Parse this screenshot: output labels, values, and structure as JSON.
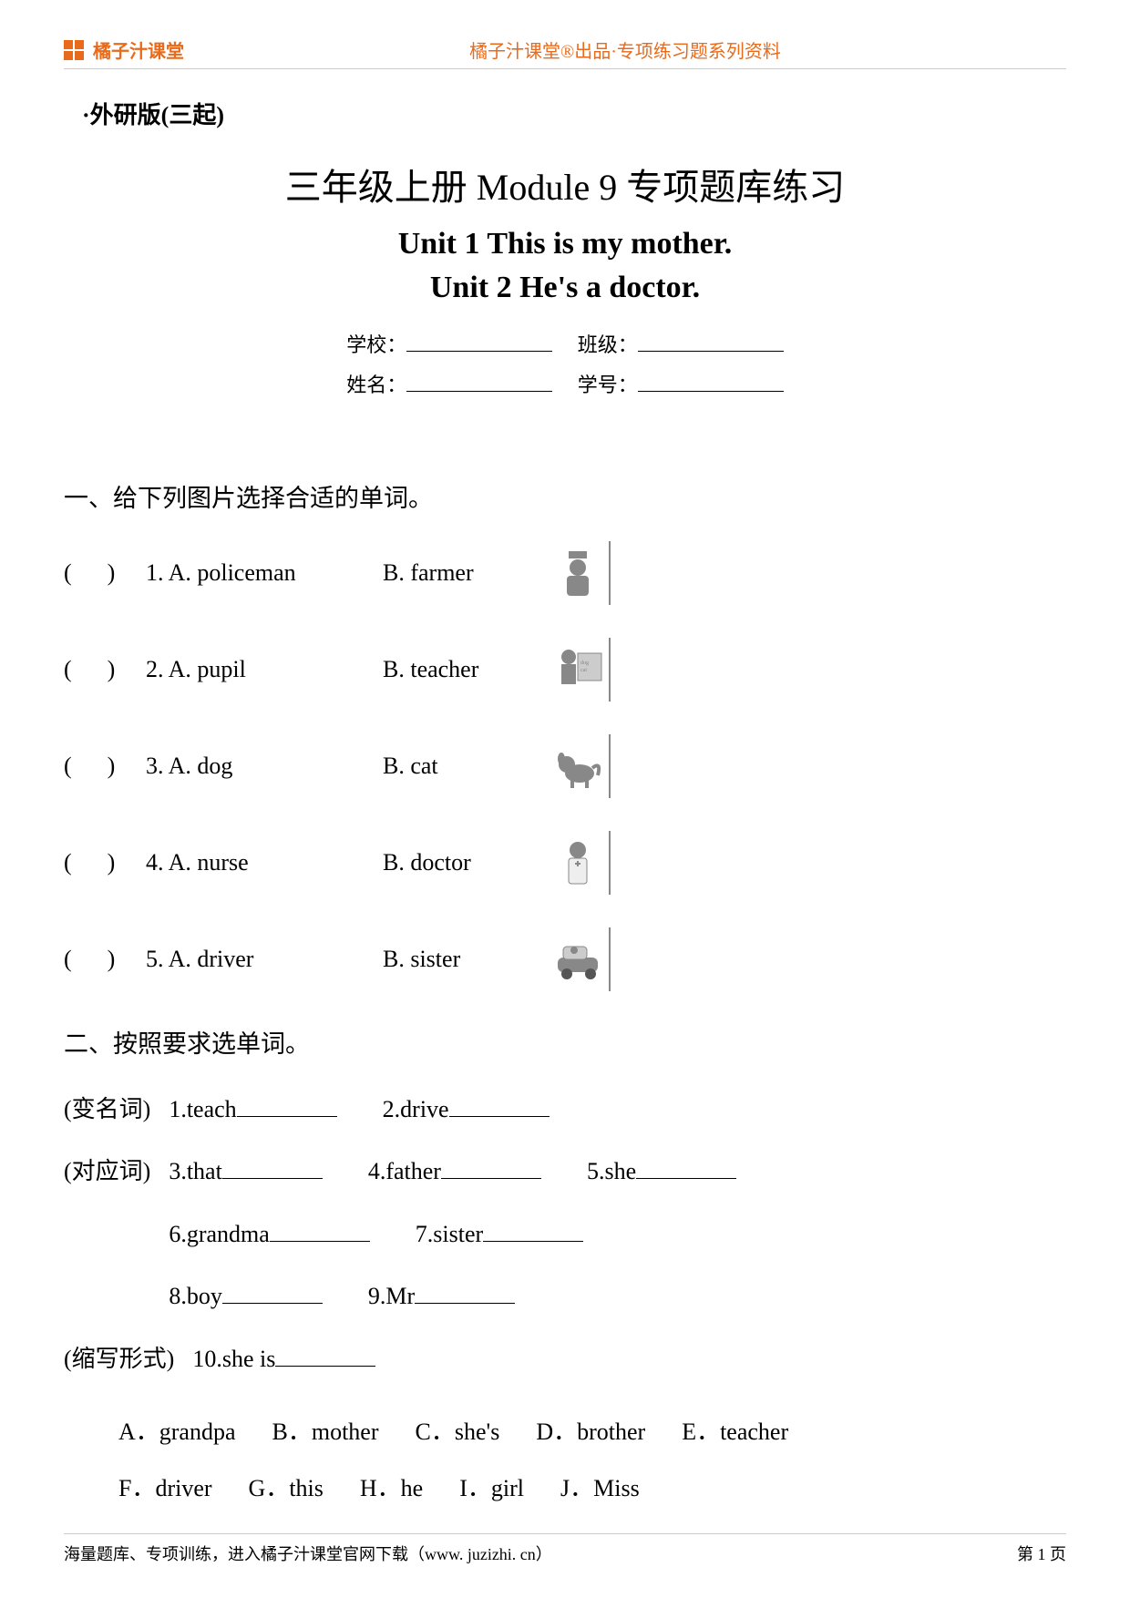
{
  "header": {
    "brand": "橘子汁课堂",
    "center": "橘子汁课堂®出品·专项练习题系列资料",
    "brand_color": "#e86a1a"
  },
  "version": "·外研版(三起)",
  "titles": {
    "main": "三年级上册 Module 9 专项题库练习",
    "unit1": "Unit 1 This is my mother.",
    "unit2": "Unit 2 He's a doctor."
  },
  "info": {
    "school_label": "学校：",
    "class_label": "班级：",
    "name_label": "姓名：",
    "id_label": "学号："
  },
  "section1": {
    "title": "一、给下列图片选择合适的单词。",
    "items": [
      {
        "n": "1",
        "a": "A. policeman",
        "b": "B. farmer",
        "icon": "policeman"
      },
      {
        "n": "2",
        "a": "A. pupil",
        "b": "B. teacher",
        "icon": "teacher"
      },
      {
        "n": "3",
        "a": "A. dog",
        "b": "B. cat",
        "icon": "dog"
      },
      {
        "n": "4",
        "a": "A. nurse",
        "b": "B. doctor",
        "icon": "doctor"
      },
      {
        "n": "5",
        "a": "A. driver",
        "b": "B. sister",
        "icon": "driver"
      }
    ]
  },
  "section2": {
    "title": "二、按照要求选单词。",
    "groups": [
      {
        "label": "(变名词)",
        "items": [
          {
            "n": "1",
            "word": "teach"
          },
          {
            "n": "2",
            "word": "drive"
          }
        ]
      },
      {
        "label": "(对应词)",
        "items": [
          {
            "n": "3",
            "word": "that"
          },
          {
            "n": "4",
            "word": "father"
          },
          {
            "n": "5",
            "word": "she"
          }
        ]
      },
      {
        "label": "",
        "items": [
          {
            "n": "6",
            "word": "grandma"
          },
          {
            "n": "7",
            "word": "sister"
          }
        ]
      },
      {
        "label": "",
        "items": [
          {
            "n": "8",
            "word": "boy"
          },
          {
            "n": "9",
            "word": "Mr"
          }
        ]
      }
    ],
    "last": {
      "label": "(缩写形式)",
      "n": "10",
      "word": "she is"
    },
    "choices_line1": [
      {
        "k": "A",
        "v": "grandpa"
      },
      {
        "k": "B",
        "v": "mother"
      },
      {
        "k": "C",
        "v": "she's"
      },
      {
        "k": "D",
        "v": "brother"
      },
      {
        "k": "E",
        "v": "teacher"
      }
    ],
    "choices_line2": [
      {
        "k": "F",
        "v": "driver"
      },
      {
        "k": "G",
        "v": "this"
      },
      {
        "k": "H",
        "v": "he"
      },
      {
        "k": "I",
        "v": "girl"
      },
      {
        "k": "J",
        "v": "Miss"
      }
    ]
  },
  "footer": {
    "left": "海量题库、专项训练，进入橘子汁课堂官网下载（www. juzizhi. cn）",
    "right": "第 1 页"
  }
}
